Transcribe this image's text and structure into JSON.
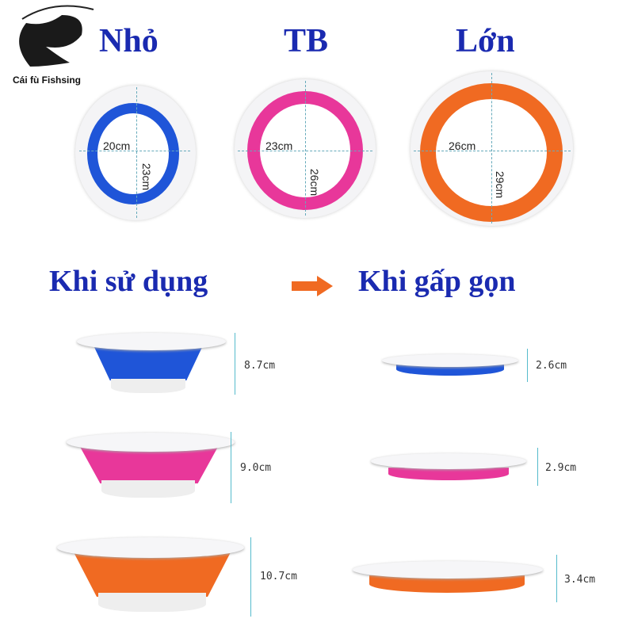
{
  "logo": {
    "text": "Cái fù Fishsing",
    "icon": "fish-icon"
  },
  "sizes": [
    {
      "label": "Nhỏ",
      "width": "20cm",
      "length": "23cm",
      "color": "#1f55d8",
      "height_open": "8.7cm",
      "height_folded": "2.6cm"
    },
    {
      "label": "TB",
      "width": "23cm",
      "length": "26cm",
      "color": "#e8379a",
      "height_open": "9.0cm",
      "height_folded": "2.9cm"
    },
    {
      "label": "Lớn",
      "width": "26cm",
      "length": "29cm",
      "color": "#f06a22",
      "height_open": "10.7cm",
      "height_folded": "3.4cm"
    }
  ],
  "headings": {
    "in_use": "Khi sử dụng",
    "folded": "Khi gấp gọn",
    "arrow_color": "#f06a22"
  }
}
